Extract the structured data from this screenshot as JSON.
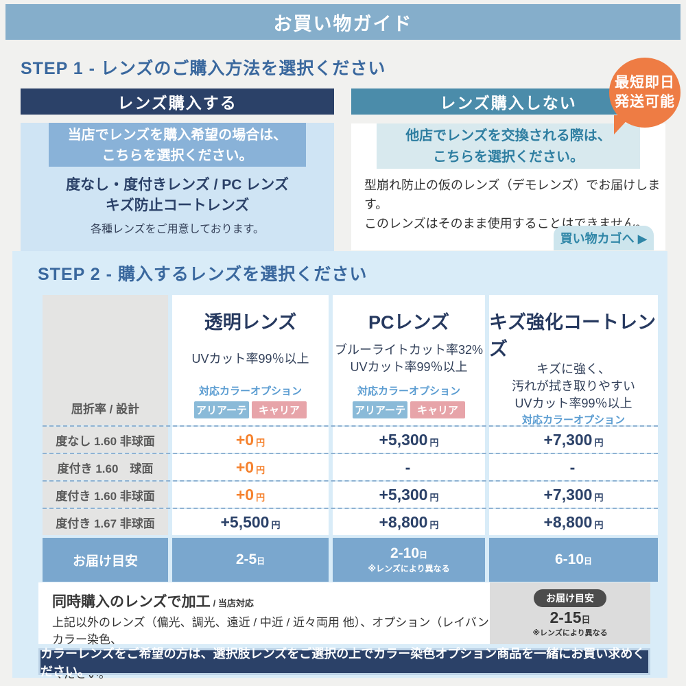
{
  "page": {
    "title": "お買い物ガイド"
  },
  "colors": {
    "topbar_blue": "#85aecb",
    "navy": "#2b4168",
    "teal": "#4b8caa",
    "panel_blue": "#d9ecf8",
    "pale_blue_body": "#cfe4f4",
    "highlight_blue": "#89b2d8",
    "orange_badge": "#ee7c44",
    "price_orange": "#f5822e",
    "delivery_blue": "#7aa7ce",
    "tag_blue": "#8abad8",
    "tag_pink": "#e7a4a9"
  },
  "step1": {
    "heading": "STEP 1 - レンズのご購入方法を選択ください",
    "buy": {
      "header": "レンズ購入する",
      "highlight_line1": "当店でレンズを購入希望の場合は、",
      "highlight_line2": "こちらを選択ください。",
      "lens_line1": "度なし・度付きレンズ / PC レンズ",
      "lens_line2": "キズ防止コートレンズ",
      "note": "各種レンズをご用意しております。"
    },
    "no_buy": {
      "header": "レンズ購入しない",
      "highlight_line1": "他店でレンズを交換される際は、",
      "highlight_line2": "こちらを選択ください。",
      "note_line1": "型崩れ防止の仮のレンズ（デモレンズ）でお届けします。",
      "note_line2": "このレンズはそのまま使用することはできません。",
      "cart_link": "買い物カゴへ ▶"
    },
    "badge": {
      "line1": "最短即日",
      "line2": "発送可能"
    }
  },
  "step2": {
    "heading": "STEP 2 - 購入するレンズを選択ください",
    "table": {
      "corner_label": "屈折率 / 設計",
      "color_option_label": "対応カラーオプション",
      "tags": [
        "アリアーテ",
        "キャリア"
      ],
      "columns": [
        {
          "title": "透明レンズ",
          "desc1": "UVカット率99％以上",
          "desc2": "",
          "desc3": ""
        },
        {
          "title": "PCレンズ",
          "desc1": "ブルーライトカット率32%",
          "desc2": "UVカット率99％以上",
          "desc3": ""
        },
        {
          "title": "キズ強化コートレンズ",
          "desc1": "キズに強く、",
          "desc2": "汚れが拭き取りやすい",
          "desc3": "UVカット率99％以上"
        }
      ],
      "rows": [
        {
          "label": "度なし 1.60 非球面",
          "prices": [
            {
              "value": "+0",
              "unit": "円",
              "accent": "orange"
            },
            {
              "value": "+5,300",
              "unit": "円",
              "accent": "navy"
            },
            {
              "value": "+7,300",
              "unit": "円",
              "accent": "navy"
            }
          ]
        },
        {
          "label": "度付き 1.60　球面",
          "prices": [
            {
              "value": "+0",
              "unit": "円",
              "accent": "orange"
            },
            {
              "value": "-",
              "unit": "",
              "accent": "navy"
            },
            {
              "value": "-",
              "unit": "",
              "accent": "navy"
            }
          ]
        },
        {
          "label": "度付き 1.60 非球面",
          "prices": [
            {
              "value": "+0",
              "unit": "円",
              "accent": "orange"
            },
            {
              "value": "+5,300",
              "unit": "円",
              "accent": "navy"
            },
            {
              "value": "+7,300",
              "unit": "円",
              "accent": "navy"
            }
          ]
        },
        {
          "label": "度付き 1.67 非球面",
          "prices": [
            {
              "value": "+5,500",
              "unit": "円",
              "accent": "navy"
            },
            {
              "value": "+8,800",
              "unit": "円",
              "accent": "navy"
            },
            {
              "value": "+8,800",
              "unit": "円",
              "accent": "navy"
            }
          ]
        }
      ],
      "delivery": {
        "label": "お届け目安",
        "values": [
          {
            "range": "2-5",
            "unit": "日",
            "note": ""
          },
          {
            "range": "2-10",
            "unit": "日",
            "note": "※レンズにより異なる"
          },
          {
            "range": "6-10",
            "unit": "日",
            "note": ""
          }
        ]
      }
    },
    "simul": {
      "title": "同時購入のレンズで加工",
      "title_suffix": "/ 当店対応",
      "body_line1": "上記以外のレンズ（偏光、調光、遠近 / 中近 / 近々両用 他）、オプション（レイバンカラー染色、",
      "body_line2": "ミラーコート）をご希望の方は該当のレンズ・オプション商品を一緒にお買い求めください。",
      "delivery_pill": "お届け目安",
      "delivery_range": "2-15",
      "delivery_unit": "日",
      "delivery_note": "※レンズにより異なる"
    },
    "footer_note": "カラーレンズをご希望の方は、選択肢レンズをご選択の上でカラー染色オプション商品を一緒にお買い求めください。"
  }
}
